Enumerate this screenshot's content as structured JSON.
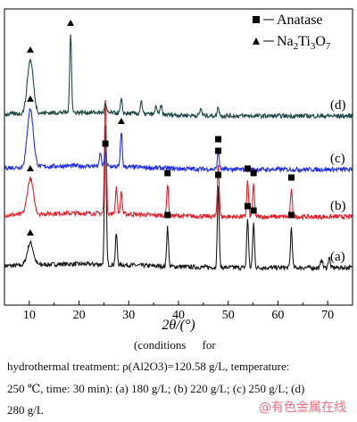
{
  "chart_data": {
    "type": "line",
    "xlabel": "2θ/(°)",
    "ylabel": "",
    "xlim": [
      5,
      75
    ],
    "x_ticks": [
      10,
      20,
      30,
      40,
      50,
      60,
      70
    ],
    "legend": {
      "placement": "top-right",
      "entries": [
        {
          "marker": "square",
          "label": "Anatase"
        },
        {
          "marker": "triangle",
          "label": "Na2Ti3O7"
        }
      ]
    },
    "series": [
      {
        "name": "(a)",
        "color": "#1a1a1a",
        "peaks": [
          [
            10.2,
            0.25
          ],
          [
            25.3,
            1.55
          ],
          [
            27.5,
            0.35
          ],
          [
            37.8,
            0.45
          ],
          [
            48.0,
            0.9
          ],
          [
            53.9,
            0.55
          ],
          [
            55.1,
            0.5
          ],
          [
            62.7,
            0.45
          ],
          [
            68.8,
            0.1
          ],
          [
            70.3,
            0.12
          ]
        ],
        "markers": {
          "anatase": [
            37.8,
            48.0,
            53.9,
            55.1,
            62.7
          ],
          "na2ti3o7": [
            10.2
          ]
        }
      },
      {
        "name": "(b)",
        "color": "#e0202a",
        "peaks": [
          [
            10.2,
            0.4
          ],
          [
            25.3,
            1.3
          ],
          [
            27.5,
            0.3
          ],
          [
            28.5,
            0.25
          ],
          [
            37.8,
            0.35
          ],
          [
            48.0,
            0.6
          ],
          [
            53.9,
            0.4
          ],
          [
            55.1,
            0.35
          ],
          [
            62.7,
            0.3
          ]
        ],
        "markers": {
          "anatase": [
            37.8,
            48.0,
            53.9,
            55.1,
            62.7
          ],
          "na2ti3o7": [
            10.2
          ]
        }
      },
      {
        "name": "(c)",
        "color": "#1f2ee0",
        "peaks": [
          [
            10.2,
            0.65
          ],
          [
            25.3,
            0.15
          ],
          [
            28.5,
            0.4
          ],
          [
            48.0,
            0.2
          ],
          [
            24.3,
            0.15
          ]
        ],
        "markers": {
          "anatase": [
            25.3,
            48.0
          ],
          "na2ti3o7": [
            10.2,
            28.5
          ]
        }
      },
      {
        "name": "(d)",
        "color": "#1e4a46",
        "peaks": [
          [
            10.2,
            0.6
          ],
          [
            18.3,
            0.9
          ],
          [
            25.3,
            0.1
          ],
          [
            28.5,
            0.15
          ],
          [
            32.5,
            0.15
          ],
          [
            35.5,
            0.1
          ],
          [
            36.5,
            0.1
          ],
          [
            44.5,
            0.08
          ],
          [
            48.0,
            0.1
          ]
        ],
        "markers": {
          "anatase": [],
          "na2ti3o7": [
            10.2,
            18.3
          ]
        }
      }
    ]
  },
  "caption": {
    "line1": [
      "(conditions",
      "for"
    ],
    "line2": "hydrothermal treatment: ρ(Al2O3)=120.58 g/L, temperature:",
    "line3": "250 ℃, time: 30 min): (a) 180 g/L; (b) 220 g/L; (c) 250 g/L; (d)",
    "line4": "280 g/L"
  },
  "watermark": "@有色金属在线"
}
